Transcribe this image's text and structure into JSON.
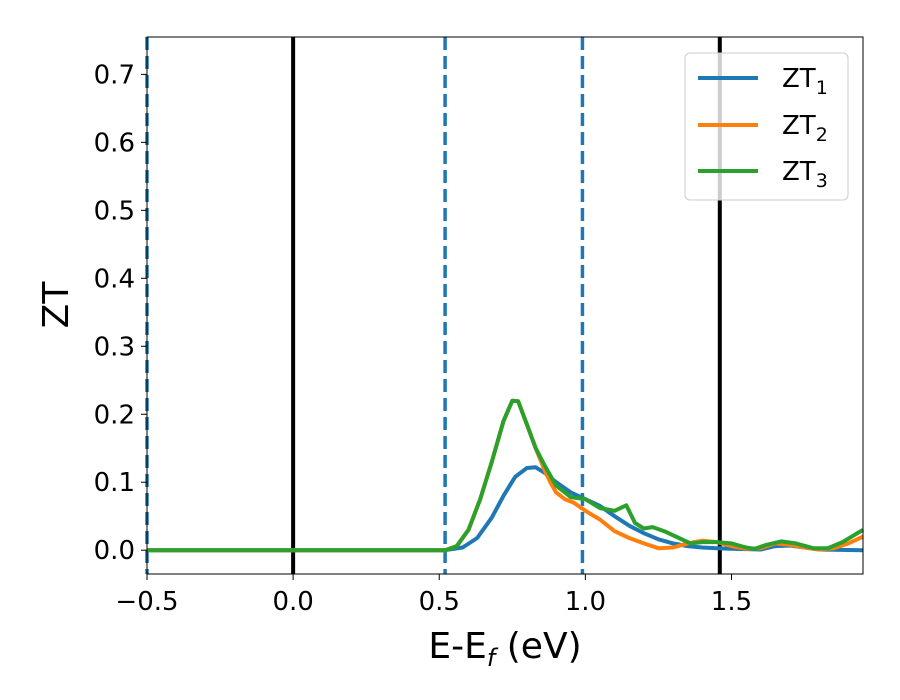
{
  "chart_data": {
    "type": "line",
    "xlabel_base": "E-E",
    "xlabel_sub": "f",
    "xlabel_unit": " (eV)",
    "ylabel": "ZT",
    "xlim": [
      -0.5,
      1.95
    ],
    "ylim": [
      -0.035,
      0.755
    ],
    "x_ticks": [
      -0.5,
      0.0,
      0.5,
      1.0,
      1.5
    ],
    "x_tick_labels": [
      "−0.5",
      "0.0",
      "0.5",
      "1.0",
      "1.5"
    ],
    "y_ticks": [
      0.0,
      0.1,
      0.2,
      0.3,
      0.4,
      0.5,
      0.6,
      0.7
    ],
    "y_tick_labels": [
      "0.0",
      "0.1",
      "0.2",
      "0.3",
      "0.4",
      "0.5",
      "0.6",
      "0.7"
    ],
    "grid": false,
    "legend_position": "top-right",
    "vertical_lines": [
      {
        "x": -0.5,
        "style": "dashed",
        "color": "#1f77b4"
      },
      {
        "x": 0.0,
        "style": "solid",
        "color": "#000000"
      },
      {
        "x": 0.52,
        "style": "dashed",
        "color": "#1f77b4"
      },
      {
        "x": 0.99,
        "style": "dashed",
        "color": "#1f77b4"
      },
      {
        "x": 1.46,
        "style": "solid",
        "color": "#000000"
      }
    ],
    "series": [
      {
        "name": "ZT",
        "subscript": "1",
        "color": "#1f77b4",
        "points": [
          [
            -0.5,
            0.0
          ],
          [
            0.4,
            0.0
          ],
          [
            0.52,
            0.0
          ],
          [
            0.58,
            0.004
          ],
          [
            0.63,
            0.018
          ],
          [
            0.68,
            0.048
          ],
          [
            0.72,
            0.08
          ],
          [
            0.76,
            0.108
          ],
          [
            0.8,
            0.121
          ],
          [
            0.83,
            0.122
          ],
          [
            0.86,
            0.114
          ],
          [
            0.9,
            0.1
          ],
          [
            0.95,
            0.085
          ],
          [
            1.0,
            0.075
          ],
          [
            1.05,
            0.065
          ],
          [
            1.1,
            0.05
          ],
          [
            1.15,
            0.036
          ],
          [
            1.2,
            0.025
          ],
          [
            1.25,
            0.016
          ],
          [
            1.3,
            0.01
          ],
          [
            1.35,
            0.006
          ],
          [
            1.4,
            0.004
          ],
          [
            1.45,
            0.003
          ],
          [
            1.5,
            0.002
          ],
          [
            1.6,
            0.001
          ],
          [
            1.65,
            0.006
          ],
          [
            1.7,
            0.007
          ],
          [
            1.8,
            0.001
          ],
          [
            1.95,
            0.0
          ]
        ]
      },
      {
        "name": "ZT",
        "subscript": "2",
        "color": "#ff7f0e",
        "points": [
          [
            -0.5,
            0.0
          ],
          [
            0.4,
            0.0
          ],
          [
            0.52,
            0.0
          ],
          [
            0.56,
            0.006
          ],
          [
            0.6,
            0.03
          ],
          [
            0.64,
            0.075
          ],
          [
            0.68,
            0.13
          ],
          [
            0.72,
            0.19
          ],
          [
            0.75,
            0.22
          ],
          [
            0.77,
            0.219
          ],
          [
            0.8,
            0.185
          ],
          [
            0.83,
            0.15
          ],
          [
            0.86,
            0.118
          ],
          [
            0.88,
            0.1
          ],
          [
            0.9,
            0.085
          ],
          [
            0.93,
            0.075
          ],
          [
            0.96,
            0.07
          ],
          [
            1.0,
            0.058
          ],
          [
            1.05,
            0.045
          ],
          [
            1.1,
            0.028
          ],
          [
            1.15,
            0.018
          ],
          [
            1.2,
            0.01
          ],
          [
            1.25,
            0.003
          ],
          [
            1.3,
            0.004
          ],
          [
            1.35,
            0.01
          ],
          [
            1.4,
            0.014
          ],
          [
            1.45,
            0.012
          ],
          [
            1.5,
            0.006
          ],
          [
            1.55,
            0.002
          ],
          [
            1.6,
            0.003
          ],
          [
            1.65,
            0.01
          ],
          [
            1.7,
            0.008
          ],
          [
            1.75,
            0.004
          ],
          [
            1.8,
            0.001
          ],
          [
            1.85,
            0.003
          ],
          [
            1.9,
            0.01
          ],
          [
            1.95,
            0.02
          ]
        ]
      },
      {
        "name": "ZT",
        "subscript": "3",
        "color": "#2ca02c",
        "points": [
          [
            -0.5,
            0.0
          ],
          [
            0.4,
            0.0
          ],
          [
            0.52,
            0.0
          ],
          [
            0.56,
            0.006
          ],
          [
            0.6,
            0.03
          ],
          [
            0.64,
            0.075
          ],
          [
            0.68,
            0.13
          ],
          [
            0.72,
            0.19
          ],
          [
            0.75,
            0.22
          ],
          [
            0.77,
            0.219
          ],
          [
            0.8,
            0.185
          ],
          [
            0.83,
            0.15
          ],
          [
            0.86,
            0.125
          ],
          [
            0.9,
            0.095
          ],
          [
            0.95,
            0.078
          ],
          [
            1.0,
            0.075
          ],
          [
            1.05,
            0.062
          ],
          [
            1.1,
            0.058
          ],
          [
            1.14,
            0.066
          ],
          [
            1.17,
            0.04
          ],
          [
            1.2,
            0.032
          ],
          [
            1.23,
            0.034
          ],
          [
            1.27,
            0.028
          ],
          [
            1.32,
            0.018
          ],
          [
            1.36,
            0.01
          ],
          [
            1.4,
            0.012
          ],
          [
            1.45,
            0.012
          ],
          [
            1.5,
            0.01
          ],
          [
            1.55,
            0.004
          ],
          [
            1.58,
            0.002
          ],
          [
            1.62,
            0.008
          ],
          [
            1.67,
            0.013
          ],
          [
            1.72,
            0.01
          ],
          [
            1.78,
            0.003
          ],
          [
            1.83,
            0.003
          ],
          [
            1.88,
            0.012
          ],
          [
            1.95,
            0.03
          ]
        ]
      }
    ]
  }
}
